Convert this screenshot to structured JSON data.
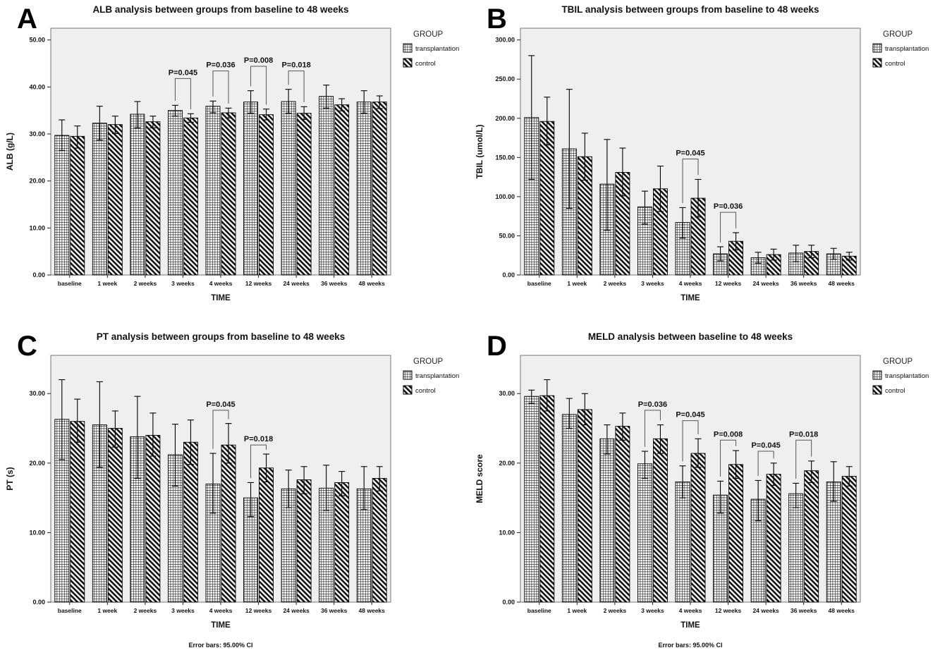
{
  "figure": {
    "background": "#ffffff",
    "plot_bg": "#efefef",
    "plot_border": "#777777",
    "bar_outline": "#000000",
    "footnote": "Error bars: 95.00% CI",
    "legend": {
      "title": "GROUP",
      "items": [
        {
          "label": "transplantation",
          "pattern": "crosshatch"
        },
        {
          "label": "control",
          "pattern": "diagonal"
        }
      ]
    }
  },
  "chart_data": [
    {
      "panel": "A",
      "type": "bar",
      "title": "ALB analysis between groups from baseline to 48 weeks",
      "xlabel": "TIME",
      "ylabel": "ALB (g/L)",
      "ylim": [
        0,
        52.5
      ],
      "yticks": [
        0,
        10,
        20,
        30,
        40,
        50
      ],
      "grid": false,
      "legend_position": "right",
      "show_footnote": false,
      "categories": [
        "baseline",
        "1 week",
        "2 weeks",
        "3 weeks",
        "4 weeks",
        "12 weeks",
        "24 weeks",
        "36 weeks",
        "48 weeks"
      ],
      "series": [
        {
          "name": "transplantation",
          "values": [
            29.7,
            32.3,
            34.2,
            35.0,
            35.9,
            36.8,
            36.9,
            38.0,
            36.8
          ],
          "ci_low": [
            26.5,
            28.7,
            31.3,
            33.8,
            34.5,
            34.4,
            34.4,
            35.5,
            34.4
          ],
          "ci_high": [
            33.0,
            35.9,
            36.9,
            36.1,
            37.0,
            39.2,
            39.5,
            40.4,
            39.2
          ]
        },
        {
          "name": "control",
          "values": [
            29.5,
            32.0,
            32.6,
            33.4,
            34.5,
            34.1,
            34.4,
            36.2,
            36.8
          ],
          "ci_low": [
            27.0,
            30.1,
            31.3,
            32.5,
            33.4,
            33.0,
            33.1,
            34.9,
            35.4
          ],
          "ci_high": [
            31.7,
            33.8,
            33.8,
            34.3,
            35.5,
            35.3,
            35.8,
            37.5,
            38.1
          ]
        }
      ],
      "annotations": [
        {
          "category_index": 3,
          "label": "P=0.045",
          "bracket_top": 41.8
        },
        {
          "category_index": 4,
          "label": "P=0.036",
          "bracket_top": 43.4
        },
        {
          "category_index": 5,
          "label": "P=0.008",
          "bracket_top": 44.4
        },
        {
          "category_index": 6,
          "label": "P=0.018",
          "bracket_top": 43.4
        }
      ]
    },
    {
      "panel": "B",
      "type": "bar",
      "title": "TBIL analysis between groups from baseline to 48 weeks",
      "xlabel": "TIME",
      "ylabel": "TBIL (umol/L)",
      "ylim": [
        0,
        315
      ],
      "yticks": [
        0,
        50,
        100,
        150,
        200,
        250,
        300
      ],
      "grid": false,
      "legend_position": "right",
      "show_footnote": false,
      "categories": [
        "baseline",
        "1 week",
        "2 weeks",
        "3 weeks",
        "4 weeks",
        "12 weeks",
        "24 weeks",
        "36 weeks",
        "48 weeks"
      ],
      "series": [
        {
          "name": "transplantation",
          "values": [
            201,
            161,
            116,
            87,
            67,
            27,
            22,
            28,
            27
          ],
          "ci_low": [
            122,
            85,
            57,
            65,
            47,
            18,
            15,
            17,
            20
          ],
          "ci_high": [
            280,
            237,
            173,
            107,
            86,
            36,
            29,
            38,
            34
          ]
        },
        {
          "name": "control",
          "values": [
            196,
            151,
            131,
            110,
            98,
            43,
            26,
            30,
            24
          ],
          "ci_low": [
            166,
            121,
            101,
            81,
            74,
            32,
            19,
            22,
            19
          ],
          "ci_high": [
            227,
            181,
            162,
            139,
            122,
            54,
            33,
            38,
            29
          ]
        }
      ],
      "annotations": [
        {
          "category_index": 4,
          "label": "P=0.045",
          "bracket_top": 148
        },
        {
          "category_index": 5,
          "label": "P=0.036",
          "bracket_top": 80
        }
      ]
    },
    {
      "panel": "C",
      "type": "bar",
      "title": "PT analysis between groups from baseline to 48 weeks",
      "xlabel": "TIME",
      "ylabel": "PT (s)",
      "ylim": [
        0,
        35.5
      ],
      "yticks": [
        0,
        10,
        20,
        30
      ],
      "grid": false,
      "legend_position": "right",
      "show_footnote": true,
      "categories": [
        "baseline",
        "1 week",
        "2 weeks",
        "3 weeks",
        "4 weeks",
        "12 weeks",
        "24 weeks",
        "36 weeks",
        "48 weeks"
      ],
      "series": [
        {
          "name": "transplantation",
          "values": [
            26.3,
            25.5,
            23.8,
            21.2,
            17.0,
            15.0,
            16.3,
            16.4,
            16.3
          ],
          "ci_low": [
            20.5,
            19.4,
            17.8,
            16.7,
            12.8,
            12.3,
            13.6,
            13.2,
            13.3
          ],
          "ci_high": [
            32.0,
            31.7,
            29.6,
            25.6,
            21.4,
            17.2,
            19.0,
            19.7,
            19.5
          ]
        },
        {
          "name": "control",
          "values": [
            26.0,
            25.0,
            24.0,
            23.0,
            22.6,
            19.3,
            17.6,
            17.2,
            17.8
          ],
          "ci_low": [
            23.0,
            22.3,
            21.0,
            19.8,
            20.0,
            17.3,
            15.6,
            15.3,
            16.0
          ],
          "ci_high": [
            29.2,
            27.5,
            27.2,
            26.2,
            25.7,
            21.3,
            19.5,
            18.8,
            19.5
          ]
        }
      ],
      "annotations": [
        {
          "category_index": 4,
          "label": "P=0.045",
          "bracket_top": 27.6
        },
        {
          "category_index": 5,
          "label": "P=0.018",
          "bracket_top": 22.6
        }
      ]
    },
    {
      "panel": "D",
      "type": "bar",
      "title": "MELD analysis between baseline to 48 weeks",
      "xlabel": "TIME",
      "ylabel": "MELD score",
      "ylim": [
        0,
        35.5
      ],
      "yticks": [
        0,
        10,
        20,
        30
      ],
      "grid": false,
      "legend_position": "right",
      "show_footnote": true,
      "categories": [
        "baseline",
        "1 week",
        "2 weeks",
        "3 weeks",
        "4 weeks",
        "12 weeks",
        "24 weeks",
        "36 weeks",
        "48 weeks"
      ],
      "series": [
        {
          "name": "transplantation",
          "values": [
            29.6,
            27.0,
            23.5,
            19.9,
            17.3,
            15.4,
            14.8,
            15.6,
            17.3
          ],
          "ci_low": [
            28.6,
            25.0,
            21.3,
            17.8,
            15.0,
            12.8,
            11.7,
            13.6,
            14.5
          ],
          "ci_high": [
            30.5,
            29.3,
            25.5,
            21.7,
            19.6,
            17.4,
            17.5,
            17.1,
            20.2
          ]
        },
        {
          "name": "control",
          "values": [
            29.7,
            27.7,
            25.3,
            23.5,
            21.4,
            19.8,
            18.4,
            18.9,
            18.1
          ],
          "ci_low": [
            27.5,
            25.5,
            23.3,
            21.4,
            19.4,
            17.8,
            16.8,
            17.2,
            16.7
          ],
          "ci_high": [
            32.0,
            30.0,
            27.2,
            25.5,
            23.5,
            21.8,
            20.0,
            20.3,
            19.5
          ]
        }
      ],
      "annotations": [
        {
          "category_index": 3,
          "label": "P=0.036",
          "bracket_top": 27.6
        },
        {
          "category_index": 4,
          "label": "P=0.045",
          "bracket_top": 26.1
        },
        {
          "category_index": 5,
          "label": "P=0.008",
          "bracket_top": 23.3
        },
        {
          "category_index": 6,
          "label": "P=0.045",
          "bracket_top": 21.7
        },
        {
          "category_index": 7,
          "label": "P=0.018",
          "bracket_top": 23.3
        }
      ]
    }
  ]
}
